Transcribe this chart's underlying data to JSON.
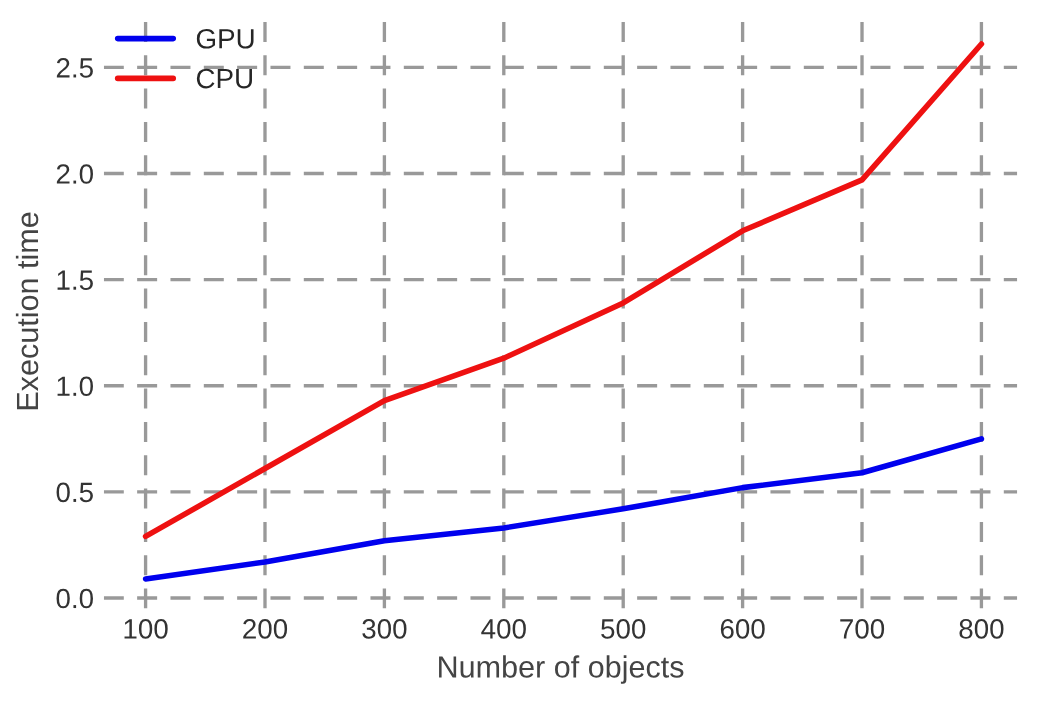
{
  "chart_data": {
    "type": "line",
    "xlabel": "Number of objects",
    "ylabel": "Execution time",
    "x": [
      100,
      200,
      300,
      400,
      500,
      600,
      700,
      800
    ],
    "series": [
      {
        "name": "GPU",
        "color": "#0000ee",
        "values": [
          0.09,
          0.17,
          0.27,
          0.33,
          0.42,
          0.52,
          0.59,
          0.75
        ]
      },
      {
        "name": "CPU",
        "color": "#ee1111",
        "values": [
          0.29,
          0.61,
          0.93,
          1.13,
          1.39,
          1.73,
          1.97,
          2.61
        ]
      }
    ],
    "xlim": [
      65,
      830
    ],
    "ylim": [
      -0.05,
      2.75
    ],
    "xticks": [
      100,
      200,
      300,
      400,
      500,
      600,
      700,
      800
    ],
    "yticks": [
      {
        "value": 0,
        "label": "0.0"
      },
      {
        "value": 0.5,
        "label": "0.5"
      },
      {
        "value": 1,
        "label": "1.0"
      },
      {
        "value": 1.5,
        "label": "1.5"
      },
      {
        "value": 2,
        "label": "2.0"
      },
      {
        "value": 2.5,
        "label": "2.5"
      }
    ],
    "grid": true,
    "legend": "top left",
    "marker": "none",
    "line_style": "solid"
  }
}
